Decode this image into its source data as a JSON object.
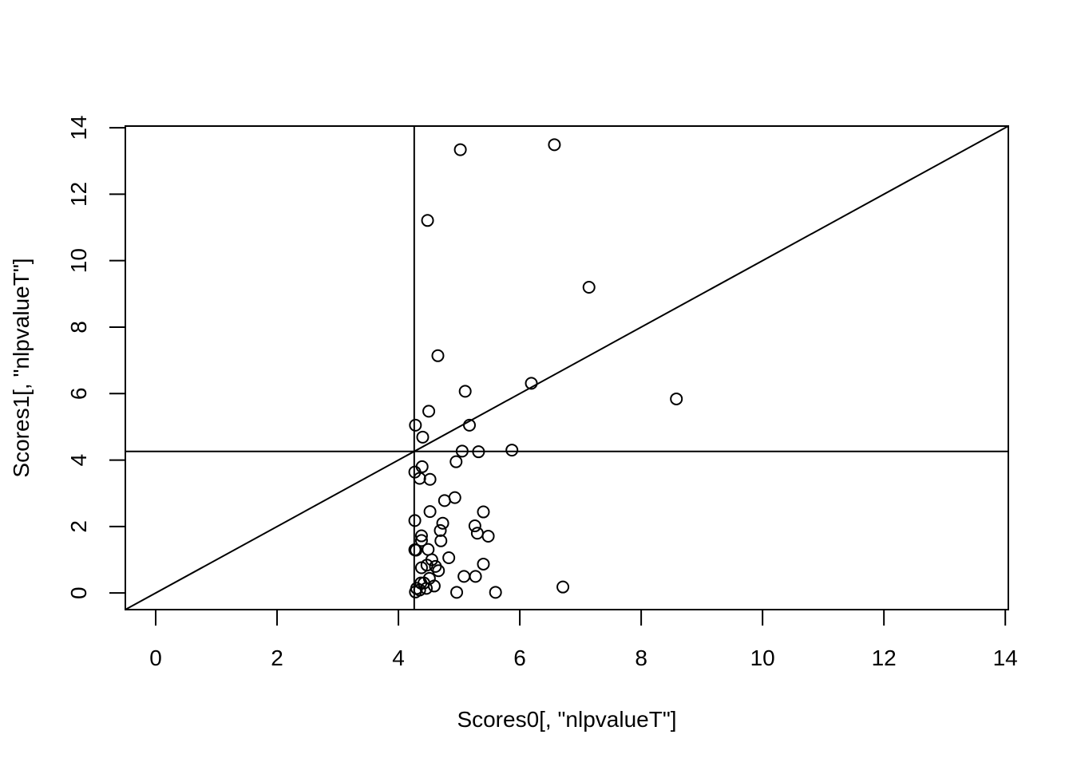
{
  "chart_data": {
    "type": "scatter",
    "title": "",
    "xlabel": "Scores0[, \"nlpvalueT\"]",
    "ylabel": "Scores1[, \"nlpvalueT\"]",
    "xlim": [
      -0.5,
      14.05
    ],
    "ylim": [
      -0.5,
      14.05
    ],
    "x_ticks": [
      0,
      2,
      4,
      6,
      8,
      10,
      12,
      14
    ],
    "y_ticks": [
      0,
      2,
      4,
      6,
      8,
      10,
      12,
      14
    ],
    "x_tick_labels": [
      "0",
      "2",
      "4",
      "6",
      "8",
      "10",
      "12",
      "14"
    ],
    "y_tick_labels": [
      "0",
      "2",
      "4",
      "6",
      "8",
      "10",
      "12",
      "14"
    ],
    "reference_lines": {
      "vertical_x": 4.26,
      "horizontal_y": 4.26,
      "diagonal": {
        "intercept": 0,
        "slope": 1
      }
    },
    "grid": false,
    "legend": "none",
    "point_style": "open-circle",
    "points": [
      [
        5.02,
        13.34
      ],
      [
        6.57,
        13.49
      ],
      [
        4.48,
        11.21
      ],
      [
        7.14,
        9.2
      ],
      [
        4.65,
        7.14
      ],
      [
        5.1,
        6.07
      ],
      [
        6.19,
        6.31
      ],
      [
        8.58,
        5.84
      ],
      [
        4.5,
        5.47
      ],
      [
        4.28,
        5.05
      ],
      [
        5.17,
        5.05
      ],
      [
        4.4,
        4.69
      ],
      [
        5.05,
        4.27
      ],
      [
        5.32,
        4.25
      ],
      [
        5.87,
        4.3
      ],
      [
        4.95,
        3.95
      ],
      [
        4.39,
        3.8
      ],
      [
        4.27,
        3.64
      ],
      [
        4.35,
        3.45
      ],
      [
        4.52,
        3.42
      ],
      [
        4.93,
        2.87
      ],
      [
        4.76,
        2.78
      ],
      [
        4.52,
        2.45
      ],
      [
        5.4,
        2.44
      ],
      [
        4.27,
        2.18
      ],
      [
        4.73,
        2.1
      ],
      [
        5.26,
        2.02
      ],
      [
        4.69,
        1.88
      ],
      [
        5.3,
        1.8
      ],
      [
        5.48,
        1.71
      ],
      [
        4.38,
        1.72
      ],
      [
        4.38,
        1.58
      ],
      [
        4.7,
        1.57
      ],
      [
        4.27,
        1.3
      ],
      [
        4.29,
        1.29
      ],
      [
        4.49,
        1.31
      ],
      [
        4.83,
        1.06
      ],
      [
        4.55,
        1.0
      ],
      [
        4.47,
        0.84
      ],
      [
        4.61,
        0.8
      ],
      [
        4.38,
        0.76
      ],
      [
        4.66,
        0.67
      ],
      [
        5.4,
        0.87
      ],
      [
        5.08,
        0.5
      ],
      [
        5.27,
        0.5
      ],
      [
        4.51,
        0.44
      ],
      [
        4.37,
        0.3
      ],
      [
        4.42,
        0.3
      ],
      [
        4.59,
        0.21
      ],
      [
        4.3,
        0.14
      ],
      [
        4.46,
        0.14
      ],
      [
        4.35,
        0.09
      ],
      [
        4.28,
        0.03
      ],
      [
        4.96,
        0.02
      ],
      [
        5.6,
        0.02
      ],
      [
        6.71,
        0.18
      ]
    ]
  }
}
